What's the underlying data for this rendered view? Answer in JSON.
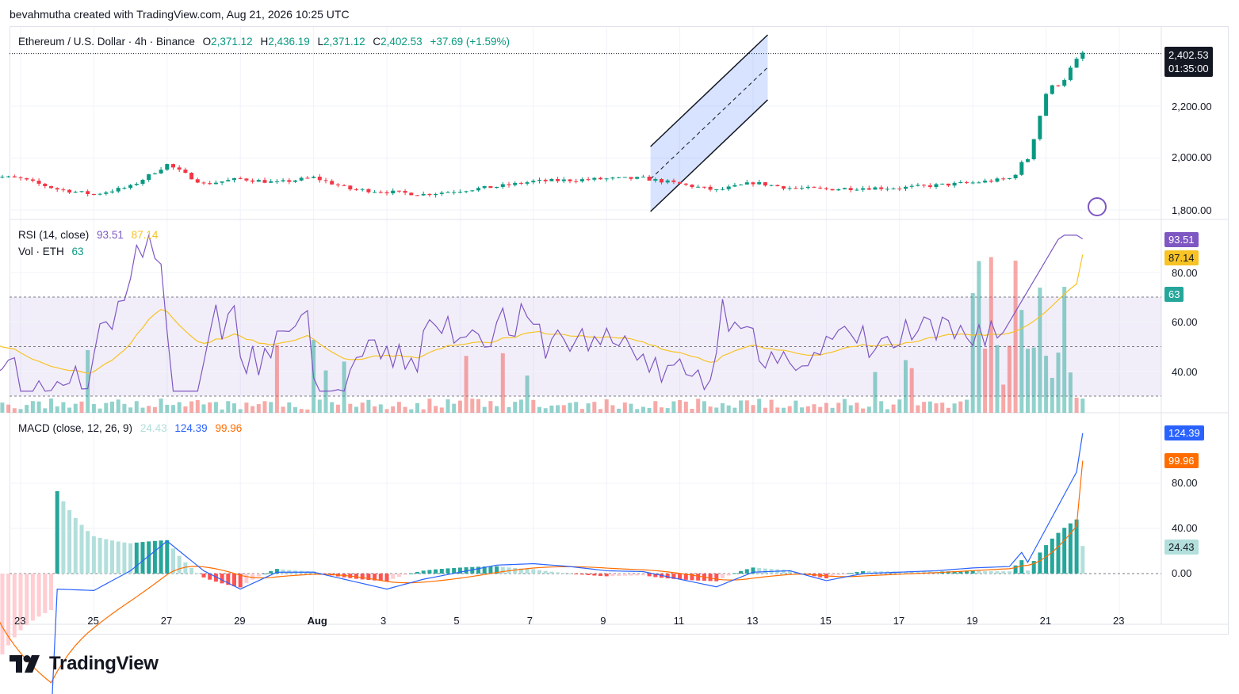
{
  "credit": "bevahmutha created with TradingView.com, Aug 21, 2026 10:25 UTC",
  "legend": {
    "symbol": "Ethereum / U.S. Dollar · 4h · Binance",
    "o_label": "O",
    "o_value": "2,371.12",
    "h_label": "H",
    "h_value": "2,436.19",
    "l_label": "L",
    "l_value": "2,371.12",
    "c_label": "C",
    "c_value": "2,402.53",
    "change": "+37.69 (+1.59%)"
  },
  "price_axis": {
    "ticks": [
      "2,200.00",
      "2,000.00",
      "1,800.00"
    ],
    "last_price": "2,402.53",
    "countdown": "01:35:00"
  },
  "rsi_pane": {
    "title": "RSI (14, close)",
    "rsi_value": "93.51",
    "ma_value": "87.14",
    "vol_title": "Vol · ETH",
    "vol_value": "63",
    "ticks": [
      "80.00",
      "60.00",
      "40.00"
    ]
  },
  "macd_pane": {
    "title": "MACD (close, 12, 26, 9)",
    "hist_value": "24.43",
    "macd_value": "124.39",
    "signal_value": "99.96",
    "ticks": [
      "80.00",
      "40.00",
      "0.00"
    ]
  },
  "time_axis": [
    "23",
    "25",
    "27",
    "29",
    "Aug",
    "3",
    "5",
    "7",
    "9",
    "11",
    "13",
    "15",
    "17",
    "19",
    "21",
    "23"
  ],
  "logo_text": "TradingView",
  "colors": {
    "up": "#089981",
    "down": "#f23645",
    "rsi": "#7e57c2",
    "rsi_ma": "#f7c325",
    "macd": "#2962ff",
    "signal": "#ff6d00",
    "hist_up": "#26a69a",
    "hist_up_light": "#b2dfdb",
    "hist_down": "#ff5252",
    "hist_down_light": "#ffcdd2",
    "channel": "#2962ff"
  },
  "chart_data": {
    "type": "candlestick",
    "symbol": "Ethereum / U.S. Dollar",
    "interval": "4h",
    "x_range": [
      "Jul 22",
      "Aug 23"
    ],
    "price_ylim": [
      1780,
      2470
    ],
    "last": {
      "open": 2371.12,
      "high": 2436.19,
      "low": 2371.12,
      "close": 2402.53,
      "change": 37.69,
      "change_pct": 1.59
    },
    "close_path": [
      {
        "x": "Jul 22",
        "y": 1935
      },
      {
        "x": "Jul 23",
        "y": 1920
      },
      {
        "x": "Jul 24",
        "y": 1880
      },
      {
        "x": "Jul 25",
        "y": 1860
      },
      {
        "x": "Jul 26",
        "y": 1890
      },
      {
        "x": "Jul 27",
        "y": 1975
      },
      {
        "x": "Jul 28",
        "y": 1900
      },
      {
        "x": "Jul 29",
        "y": 1920
      },
      {
        "x": "Jul 30",
        "y": 1905
      },
      {
        "x": "Jul 31",
        "y": 1925
      },
      {
        "x": "Aug 1",
        "y": 1880
      },
      {
        "x": "Aug 2",
        "y": 1870
      },
      {
        "x": "Aug 3",
        "y": 1860
      },
      {
        "x": "Aug 4",
        "y": 1875
      },
      {
        "x": "Aug 5",
        "y": 1890
      },
      {
        "x": "Aug 6",
        "y": 1910
      },
      {
        "x": "Aug 7",
        "y": 1915
      },
      {
        "x": "Aug 8",
        "y": 1920
      },
      {
        "x": "Aug 9",
        "y": 1922
      },
      {
        "x": "Aug 10",
        "y": 1900
      },
      {
        "x": "Aug 11",
        "y": 1875
      },
      {
        "x": "Aug 12",
        "y": 1905
      },
      {
        "x": "Aug 13",
        "y": 1885
      },
      {
        "x": "Aug 14",
        "y": 1880
      },
      {
        "x": "Aug 15",
        "y": 1885
      },
      {
        "x": "Aug 16",
        "y": 1885
      },
      {
        "x": "Aug 17",
        "y": 1895
      },
      {
        "x": "Aug 18",
        "y": 1905
      },
      {
        "x": "Aug 19",
        "y": 1920
      },
      {
        "x": "Aug 19.5",
        "y": 2000
      },
      {
        "x": "Aug 20",
        "y": 2250
      },
      {
        "x": "Aug 20.5",
        "y": 2310
      },
      {
        "x": "Aug 21",
        "y": 2402.53
      }
    ],
    "rsi": {
      "period": 14,
      "value": 93.51,
      "ma": 87.14,
      "ylim": [
        25,
        100
      ],
      "bands": [
        30,
        50,
        70
      ]
    },
    "volume": {
      "value": 63
    },
    "macd": {
      "fast": 12,
      "slow": 26,
      "signal": 9,
      "histogram": 24.43,
      "macd": 124.39,
      "signal_value": 99.96,
      "ylim": [
        -20,
        135
      ]
    }
  }
}
